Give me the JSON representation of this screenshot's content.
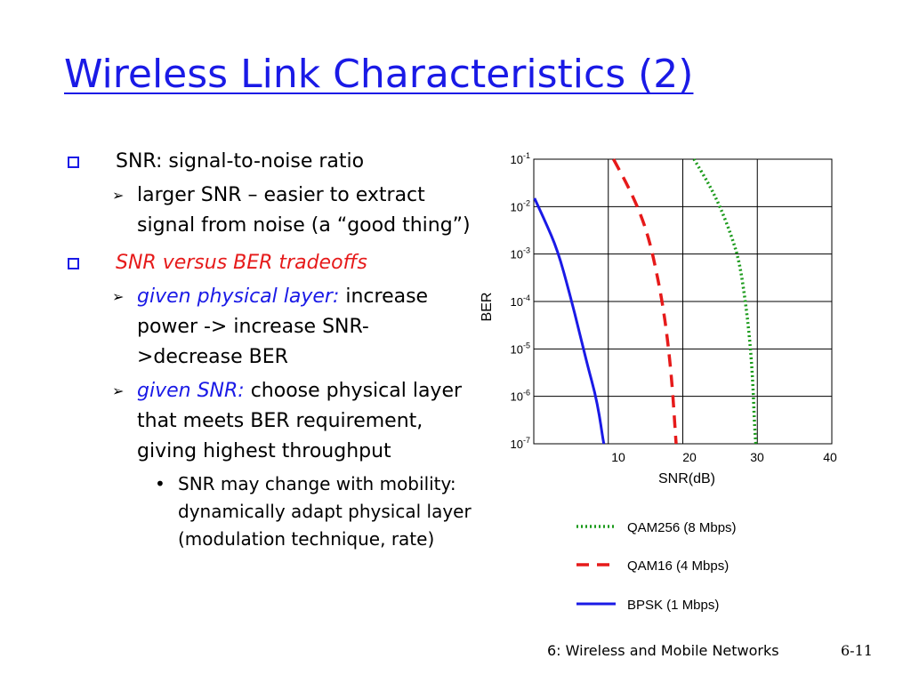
{
  "slide": {
    "title": "Wireless Link Characteristics (2)",
    "bullets": [
      {
        "text": "SNR: signal-to-noise ratio",
        "sub": [
          {
            "text": "larger SNR – easier to extract signal from noise (a “good thing”)"
          }
        ]
      },
      {
        "text": "SNR versus BER tradeoffs",
        "sub": [
          {
            "emph": "given physical layer:",
            "text": " increase power -> increase SNR->decrease BER"
          },
          {
            "emph": "given SNR:",
            "text": " choose physical layer that meets BER requirement, giving highest throughput",
            "sub": [
              {
                "text": "SNR may change with mobility: dynamically adapt physical layer (modulation technique, rate)"
              }
            ]
          }
        ]
      }
    ],
    "footer": "6: Wireless and Mobile Networks",
    "page_number": "6-11"
  },
  "colors": {
    "title": "#1a1ae6",
    "bullet_marker": "#1a1ae6",
    "emph_red": "#e61a1a",
    "emph_blue": "#1a1ae6",
    "qam256": "#1a9a1a",
    "qam16": "#e61a1a",
    "bpsk": "#1a1ae6"
  },
  "icons": {
    "level1_marker": "hollow-square-icon",
    "level2_marker": "chevron-right-icon",
    "level3_marker": "dot-icon"
  },
  "chart_data": {
    "type": "line",
    "xlabel": "SNR(dB)",
    "ylabel": "BER",
    "x_tick_labels": [
      "10",
      "20",
      "30",
      "40"
    ],
    "y_tick_labels": [
      {
        "base": "10",
        "exp": "-1"
      },
      {
        "base": "10",
        "exp": "-2"
      },
      {
        "base": "10",
        "exp": "-3"
      },
      {
        "base": "10",
        "exp": "-4"
      },
      {
        "base": "10",
        "exp": "-5"
      },
      {
        "base": "10",
        "exp": "-6"
      },
      {
        "base": "10",
        "exp": "-7"
      }
    ],
    "y_scale": "log",
    "xlim": [
      0,
      40
    ],
    "ylim": [
      1e-07,
      0.1
    ],
    "grid": true,
    "legend_position": "below",
    "series": [
      {
        "name": "QAM256 (8 Mbps)",
        "style": "dotted",
        "x": [
          21.5,
          23.5,
          25.0,
          26.5,
          27.6,
          28.4,
          29.0,
          29.4,
          29.6,
          29.8
        ],
        "y": [
          0.1,
          0.03,
          0.01,
          0.0025,
          0.0007,
          0.0001,
          1.5e-05,
          2e-06,
          3e-07,
          1e-07
        ]
      },
      {
        "name": "QAM16 (4 Mbps)",
        "style": "dashed",
        "x": [
          10.7,
          12.5,
          14.2,
          15.5,
          16.5,
          17.4,
          18.1,
          18.6,
          18.9,
          19.1
        ],
        "y": [
          0.1,
          0.03,
          0.008,
          0.002,
          0.0004,
          7e-05,
          1e-05,
          1.5e-06,
          3e-07,
          1e-07
        ]
      },
      {
        "name": "BPSK (1 Mbps)",
        "style": "solid",
        "x": [
          0.1,
          1.5,
          3.2,
          4.8,
          6.2,
          7.3,
          8.2,
          8.8,
          9.2,
          9.4
        ],
        "y": [
          0.015,
          0.005,
          0.0012,
          0.00015,
          2e-05,
          4e-06,
          1.2e-06,
          4e-07,
          1.5e-07,
          1e-07
        ]
      }
    ]
  }
}
